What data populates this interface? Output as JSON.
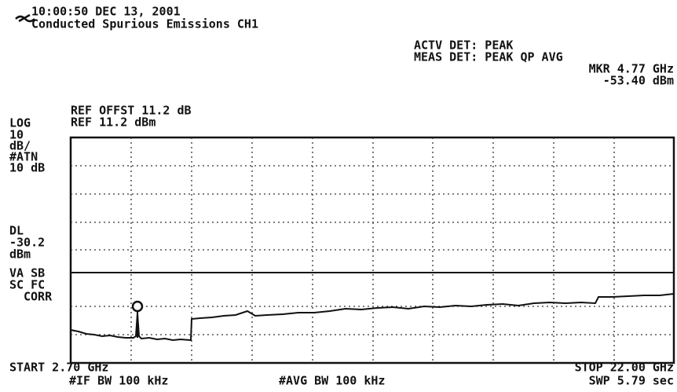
{
  "header": {
    "timestamp": "10:00:50 DEC 13, 2001",
    "title": "Conducted Spurious Emissions CH1",
    "actv_det": "ACTV DET: PEAK",
    "meas_det": "MEAS DET: PEAK QP AVG",
    "marker_freq": "MKR 4.77 GHz",
    "marker_level": "-53.40 dBm",
    "ref_offset": "REF OFFST 11.2 dB",
    "ref_level": "REF 11.2 dBm"
  },
  "side_labels": [
    "LOG",
    "10",
    "dB/",
    "#ATN",
    "10 dB",
    "DL",
    "-30.2",
    "dBm",
    "VA SB",
    "SC FC",
    "CORR"
  ],
  "footer": {
    "start": "START 2.70 GHz",
    "stop": "STOP 22.00 GHz",
    "if_bw": "#IF BW 100 kHz",
    "avg_bw": "#AVG BW 100 kHz",
    "sweep": "SWP 5.79 sec"
  }
}
